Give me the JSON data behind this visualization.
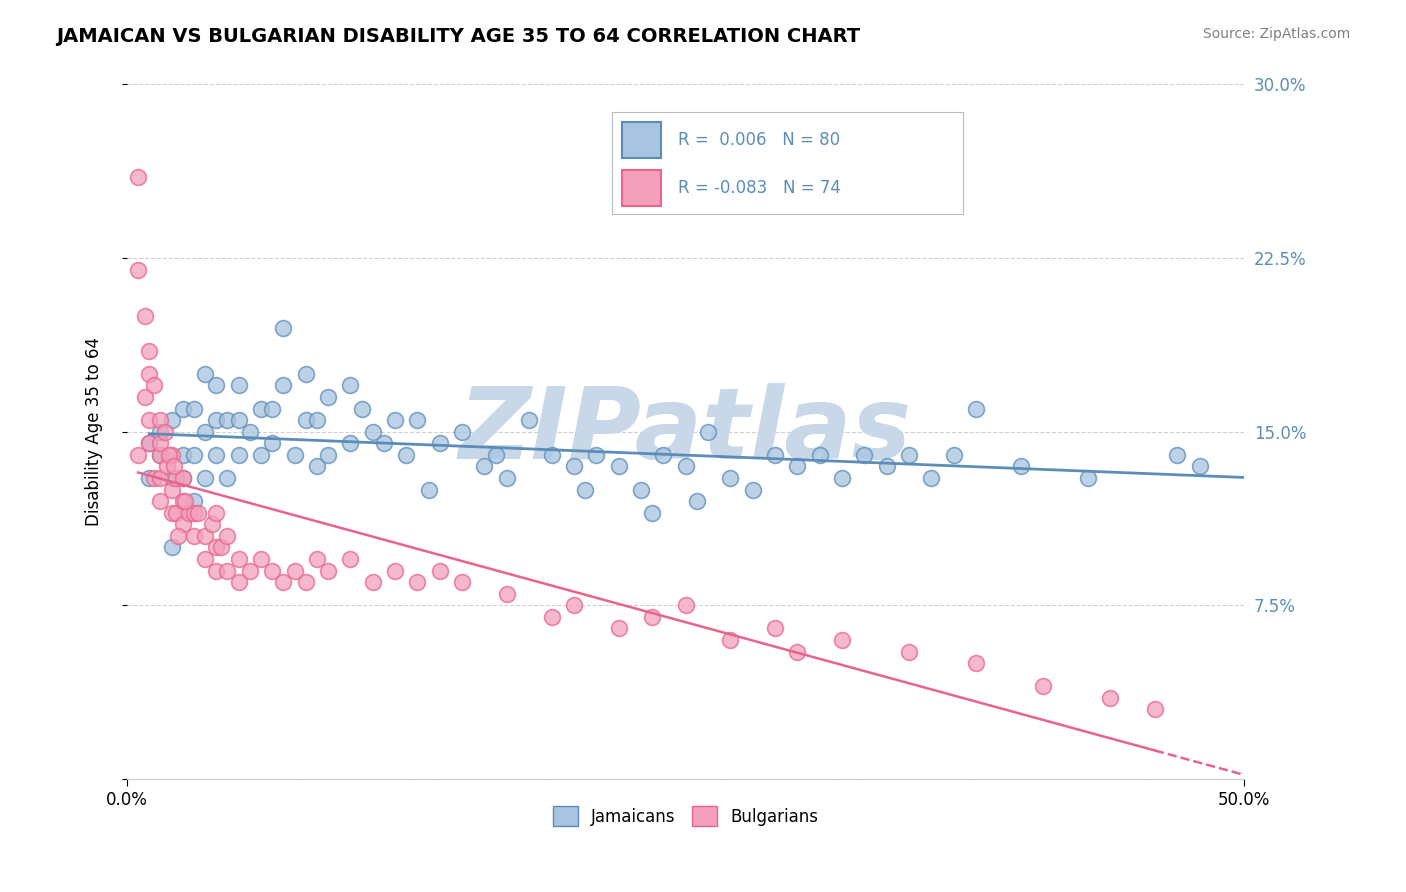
{
  "title": "JAMAICAN VS BULGARIAN DISABILITY AGE 35 TO 64 CORRELATION CHART",
  "source_text": "Source: ZipAtlas.com",
  "ylabel": "Disability Age 35 to 64",
  "xlim": [
    0.0,
    0.5
  ],
  "ylim": [
    0.0,
    0.3
  ],
  "ytick_vals": [
    0.0,
    0.075,
    0.15,
    0.225,
    0.3
  ],
  "ytick_labels": [
    "",
    "7.5%",
    "15.0%",
    "22.5%",
    "30.0%"
  ],
  "legend_R1": "0.006",
  "legend_N1": "80",
  "legend_R2": "-0.083",
  "legend_N2": "74",
  "color_blue": "#5B8DB8",
  "color_pink": "#E8648A",
  "color_blue_light": "#A8C4E0",
  "color_pink_light": "#F4A0BC",
  "watermark": "ZIPatlas",
  "watermark_color": "#C8D8E8",
  "background_color": "#FFFFFF",
  "jamaican_x": [
    0.01,
    0.01,
    0.015,
    0.015,
    0.02,
    0.02,
    0.02,
    0.025,
    0.025,
    0.025,
    0.03,
    0.03,
    0.03,
    0.035,
    0.035,
    0.035,
    0.04,
    0.04,
    0.04,
    0.045,
    0.045,
    0.05,
    0.05,
    0.05,
    0.055,
    0.06,
    0.06,
    0.065,
    0.065,
    0.07,
    0.07,
    0.075,
    0.08,
    0.08,
    0.085,
    0.085,
    0.09,
    0.09,
    0.1,
    0.1,
    0.105,
    0.11,
    0.115,
    0.12,
    0.125,
    0.13,
    0.135,
    0.14,
    0.15,
    0.16,
    0.165,
    0.17,
    0.18,
    0.19,
    0.2,
    0.205,
    0.21,
    0.22,
    0.23,
    0.235,
    0.24,
    0.25,
    0.255,
    0.26,
    0.27,
    0.28,
    0.29,
    0.3,
    0.31,
    0.32,
    0.33,
    0.34,
    0.35,
    0.36,
    0.37,
    0.38,
    0.4,
    0.43,
    0.47,
    0.48
  ],
  "jamaican_y": [
    0.13,
    0.145,
    0.14,
    0.15,
    0.1,
    0.13,
    0.155,
    0.13,
    0.14,
    0.16,
    0.12,
    0.14,
    0.16,
    0.13,
    0.15,
    0.175,
    0.14,
    0.155,
    0.17,
    0.13,
    0.155,
    0.14,
    0.155,
    0.17,
    0.15,
    0.14,
    0.16,
    0.145,
    0.16,
    0.17,
    0.195,
    0.14,
    0.155,
    0.175,
    0.135,
    0.155,
    0.14,
    0.165,
    0.145,
    0.17,
    0.16,
    0.15,
    0.145,
    0.155,
    0.14,
    0.155,
    0.125,
    0.145,
    0.15,
    0.135,
    0.14,
    0.13,
    0.155,
    0.14,
    0.135,
    0.125,
    0.14,
    0.135,
    0.125,
    0.115,
    0.14,
    0.135,
    0.12,
    0.15,
    0.13,
    0.125,
    0.14,
    0.135,
    0.14,
    0.13,
    0.14,
    0.135,
    0.14,
    0.13,
    0.14,
    0.16,
    0.135,
    0.13,
    0.14,
    0.135
  ],
  "bulgarian_x": [
    0.005,
    0.005,
    0.005,
    0.008,
    0.008,
    0.01,
    0.01,
    0.01,
    0.01,
    0.012,
    0.012,
    0.015,
    0.015,
    0.015,
    0.015,
    0.018,
    0.02,
    0.02,
    0.02,
    0.022,
    0.022,
    0.025,
    0.025,
    0.025,
    0.028,
    0.03,
    0.03,
    0.032,
    0.035,
    0.035,
    0.038,
    0.04,
    0.04,
    0.04,
    0.042,
    0.045,
    0.045,
    0.05,
    0.05,
    0.055,
    0.06,
    0.065,
    0.07,
    0.075,
    0.08,
    0.085,
    0.09,
    0.1,
    0.11,
    0.12,
    0.13,
    0.14,
    0.15,
    0.17,
    0.19,
    0.2,
    0.22,
    0.235,
    0.25,
    0.27,
    0.29,
    0.3,
    0.32,
    0.35,
    0.38,
    0.41,
    0.44,
    0.46,
    0.015,
    0.017,
    0.019,
    0.021,
    0.023,
    0.026
  ],
  "bulgarian_y": [
    0.26,
    0.22,
    0.14,
    0.2,
    0.165,
    0.185,
    0.175,
    0.155,
    0.145,
    0.17,
    0.13,
    0.155,
    0.14,
    0.13,
    0.12,
    0.135,
    0.14,
    0.125,
    0.115,
    0.13,
    0.115,
    0.13,
    0.12,
    0.11,
    0.115,
    0.115,
    0.105,
    0.115,
    0.105,
    0.095,
    0.11,
    0.1,
    0.09,
    0.115,
    0.1,
    0.09,
    0.105,
    0.095,
    0.085,
    0.09,
    0.095,
    0.09,
    0.085,
    0.09,
    0.085,
    0.095,
    0.09,
    0.095,
    0.085,
    0.09,
    0.085,
    0.09,
    0.085,
    0.08,
    0.07,
    0.075,
    0.065,
    0.07,
    0.075,
    0.06,
    0.065,
    0.055,
    0.06,
    0.055,
    0.05,
    0.04,
    0.035,
    0.03,
    0.145,
    0.15,
    0.14,
    0.135,
    0.105,
    0.12
  ]
}
